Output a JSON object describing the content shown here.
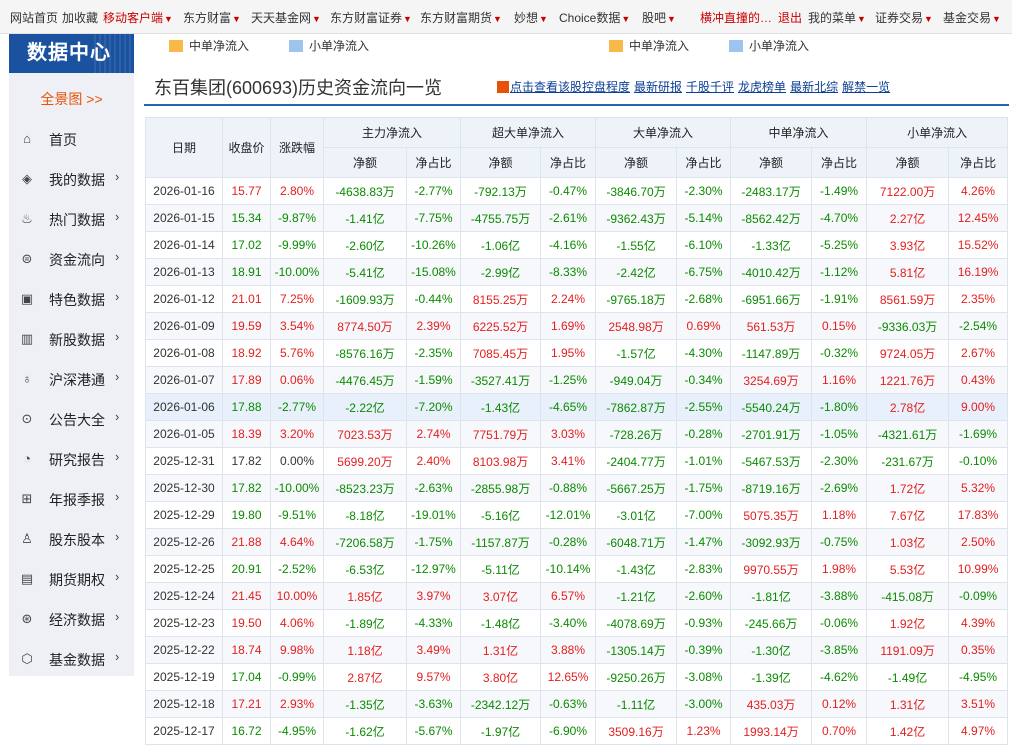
{
  "topnav": [
    {
      "label": "网站首页",
      "red": false,
      "caret": false
    },
    {
      "label": "加收藏",
      "red": false,
      "caret": false
    },
    {
      "label": "移动客户端",
      "red": true,
      "caret": true
    },
    {
      "label": "东方财富",
      "red": false,
      "caret": true
    },
    {
      "label": "天天基金网",
      "red": false,
      "caret": true
    },
    {
      "label": "东方财富证券",
      "red": false,
      "caret": true
    },
    {
      "label": "东方财富期货",
      "red": false,
      "caret": true
    },
    {
      "label": "妙想",
      "red": false,
      "caret": true
    },
    {
      "label": "Choice数据",
      "red": false,
      "caret": true
    },
    {
      "label": "股吧",
      "red": false,
      "caret": true
    },
    {
      "label": "横冲直撞的…",
      "red": true,
      "caret": false
    },
    {
      "label": "退出",
      "red": true,
      "caret": false
    },
    {
      "label": "我的菜单",
      "red": false,
      "caret": true
    },
    {
      "label": "证券交易",
      "red": false,
      "caret": true
    },
    {
      "label": "基金交易",
      "red": false,
      "caret": true
    }
  ],
  "sidebar": {
    "title": "数据中心",
    "overview": "全景图 >>",
    "items": [
      {
        "label": "首页",
        "icon": "⌂",
        "arrow": false
      },
      {
        "label": "我的数据",
        "icon": "◈",
        "arrow": true
      },
      {
        "label": "热门数据",
        "icon": "♨",
        "arrow": true
      },
      {
        "label": "资金流向",
        "icon": "⊜",
        "arrow": true
      },
      {
        "label": "特色数据",
        "icon": "▣",
        "arrow": true
      },
      {
        "label": "新股数据",
        "icon": "▥",
        "arrow": true
      },
      {
        "label": "沪深港通",
        "icon": "♁",
        "arrow": true
      },
      {
        "label": "公告大全",
        "icon": "⊙",
        "arrow": true
      },
      {
        "label": "研究报告",
        "icon": "◔",
        "arrow": true
      },
      {
        "label": "年报季报",
        "icon": "⊞",
        "arrow": true
      },
      {
        "label": "股东股本",
        "icon": "♙",
        "arrow": true
      },
      {
        "label": "期货期权",
        "icon": "▤",
        "arrow": true
      },
      {
        "label": "经济数据",
        "icon": "⊛",
        "arrow": true
      },
      {
        "label": "基金数据",
        "icon": "⬡",
        "arrow": true
      }
    ]
  },
  "legend": [
    {
      "label": "中单净流入",
      "color": "#f8b84a"
    },
    {
      "label": "小单净流入",
      "color": "#9cc4ec"
    },
    {
      "label": "中单净流入",
      "color": "#f8b84a"
    },
    {
      "label": "小单净流入",
      "color": "#9cc4ec"
    }
  ],
  "page_title": "东百集团(600693)历史资金流向一览",
  "links": [
    "点击查看该股控盘程度",
    "最新研报",
    "千股千评",
    "龙虎榜单",
    "最新北综",
    "解禁一览"
  ],
  "table": {
    "headers": {
      "date": "日期",
      "close": "收盘价",
      "chg": "涨跌幅",
      "groups": [
        "主力净流入",
        "超大单净流入",
        "大单净流入",
        "中单净流入",
        "小单净流入"
      ],
      "sub_amt": "净额",
      "sub_pct": "净占比"
    },
    "rows": [
      [
        "2026-01-16",
        "15.77",
        "2.80%",
        "-4638.83万",
        "-2.77%",
        "-792.13万",
        "-0.47%",
        "-3846.70万",
        "-2.30%",
        "-2483.17万",
        "-1.49%",
        "7122.00万",
        "4.26%"
      ],
      [
        "2026-01-15",
        "15.34",
        "-9.87%",
        "-1.41亿",
        "-7.75%",
        "-4755.75万",
        "-2.61%",
        "-9362.43万",
        "-5.14%",
        "-8562.42万",
        "-4.70%",
        "2.27亿",
        "12.45%"
      ],
      [
        "2026-01-14",
        "17.02",
        "-9.99%",
        "-2.60亿",
        "-10.26%",
        "-1.06亿",
        "-4.16%",
        "-1.55亿",
        "-6.10%",
        "-1.33亿",
        "-5.25%",
        "3.93亿",
        "15.52%"
      ],
      [
        "2026-01-13",
        "18.91",
        "-10.00%",
        "-5.41亿",
        "-15.08%",
        "-2.99亿",
        "-8.33%",
        "-2.42亿",
        "-6.75%",
        "-4010.42万",
        "-1.12%",
        "5.81亿",
        "16.19%"
      ],
      [
        "2026-01-12",
        "21.01",
        "7.25%",
        "-1609.93万",
        "-0.44%",
        "8155.25万",
        "2.24%",
        "-9765.18万",
        "-2.68%",
        "-6951.66万",
        "-1.91%",
        "8561.59万",
        "2.35%"
      ],
      [
        "2026-01-09",
        "19.59",
        "3.54%",
        "8774.50万",
        "2.39%",
        "6225.52万",
        "1.69%",
        "2548.98万",
        "0.69%",
        "561.53万",
        "0.15%",
        "-9336.03万",
        "-2.54%"
      ],
      [
        "2026-01-08",
        "18.92",
        "5.76%",
        "-8576.16万",
        "-2.35%",
        "7085.45万",
        "1.95%",
        "-1.57亿",
        "-4.30%",
        "-1147.89万",
        "-0.32%",
        "9724.05万",
        "2.67%"
      ],
      [
        "2026-01-07",
        "17.89",
        "0.06%",
        "-4476.45万",
        "-1.59%",
        "-3527.41万",
        "-1.25%",
        "-949.04万",
        "-0.34%",
        "3254.69万",
        "1.16%",
        "1221.76万",
        "0.43%"
      ],
      [
        "2026-01-06",
        "17.88",
        "-2.77%",
        "-2.22亿",
        "-7.20%",
        "-1.43亿",
        "-4.65%",
        "-7862.87万",
        "-2.55%",
        "-5540.24万",
        "-1.80%",
        "2.78亿",
        "9.00%"
      ],
      [
        "2026-01-05",
        "18.39",
        "3.20%",
        "7023.53万",
        "2.74%",
        "7751.79万",
        "3.03%",
        "-728.26万",
        "-0.28%",
        "-2701.91万",
        "-1.05%",
        "-4321.61万",
        "-1.69%"
      ],
      [
        "2025-12-31",
        "17.82",
        "0.00%",
        "5699.20万",
        "2.40%",
        "8103.98万",
        "3.41%",
        "-2404.77万",
        "-1.01%",
        "-5467.53万",
        "-2.30%",
        "-231.67万",
        "-0.10%"
      ],
      [
        "2025-12-30",
        "17.82",
        "-10.00%",
        "-8523.23万",
        "-2.63%",
        "-2855.98万",
        "-0.88%",
        "-5667.25万",
        "-1.75%",
        "-8719.16万",
        "-2.69%",
        "1.72亿",
        "5.32%"
      ],
      [
        "2025-12-29",
        "19.80",
        "-9.51%",
        "-8.18亿",
        "-19.01%",
        "-5.16亿",
        "-12.01%",
        "-3.01亿",
        "-7.00%",
        "5075.35万",
        "1.18%",
        "7.67亿",
        "17.83%"
      ],
      [
        "2025-12-26",
        "21.88",
        "4.64%",
        "-7206.58万",
        "-1.75%",
        "-1157.87万",
        "-0.28%",
        "-6048.71万",
        "-1.47%",
        "-3092.93万",
        "-0.75%",
        "1.03亿",
        "2.50%"
      ],
      [
        "2025-12-25",
        "20.91",
        "-2.52%",
        "-6.53亿",
        "-12.97%",
        "-5.11亿",
        "-10.14%",
        "-1.43亿",
        "-2.83%",
        "9970.55万",
        "1.98%",
        "5.53亿",
        "10.99%"
      ],
      [
        "2025-12-24",
        "21.45",
        "10.00%",
        "1.85亿",
        "3.97%",
        "3.07亿",
        "6.57%",
        "-1.21亿",
        "-2.60%",
        "-1.81亿",
        "-3.88%",
        "-415.08万",
        "-0.09%"
      ],
      [
        "2025-12-23",
        "19.50",
        "4.06%",
        "-1.89亿",
        "-4.33%",
        "-1.48亿",
        "-3.40%",
        "-4078.69万",
        "-0.93%",
        "-245.66万",
        "-0.06%",
        "1.92亿",
        "4.39%"
      ],
      [
        "2025-12-22",
        "18.74",
        "9.98%",
        "1.18亿",
        "3.49%",
        "1.31亿",
        "3.88%",
        "-1305.14万",
        "-0.39%",
        "-1.30亿",
        "-3.85%",
        "1191.09万",
        "0.35%"
      ],
      [
        "2025-12-19",
        "17.04",
        "-0.99%",
        "2.87亿",
        "9.57%",
        "3.80亿",
        "12.65%",
        "-9250.26万",
        "-3.08%",
        "-1.39亿",
        "-4.62%",
        "-1.49亿",
        "-4.95%"
      ],
      [
        "2025-12-18",
        "17.21",
        "2.93%",
        "-1.35亿",
        "-3.63%",
        "-2342.12万",
        "-0.63%",
        "-1.11亿",
        "-3.00%",
        "435.03万",
        "0.12%",
        "1.31亿",
        "3.51%"
      ],
      [
        "2025-12-17",
        "16.72",
        "-4.95%",
        "-1.62亿",
        "-5.67%",
        "-1.97亿",
        "-6.90%",
        "3509.16万",
        "1.23%",
        "1993.14万",
        "0.70%",
        "1.42亿",
        "4.97%"
      ]
    ],
    "highlight_row": 8
  }
}
